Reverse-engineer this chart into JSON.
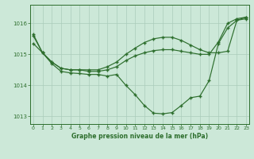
{
  "bg_color": "#cce8d8",
  "grid_color": "#aaccbb",
  "line_color": "#2d6e2d",
  "title": "Graphe pression niveau de la mer (hPa)",
  "ylim": [
    1012.75,
    1016.6
  ],
  "xlim": [
    -0.3,
    23.3
  ],
  "yticks": [
    1013,
    1014,
    1015,
    1016
  ],
  "xticks": [
    0,
    1,
    2,
    3,
    4,
    5,
    6,
    7,
    8,
    9,
    10,
    11,
    12,
    13,
    14,
    15,
    16,
    17,
    18,
    19,
    20,
    21,
    22,
    23
  ],
  "line1_x": [
    0,
    1,
    2,
    3,
    4,
    5,
    6,
    7,
    8,
    9,
    10,
    11,
    12,
    13,
    14,
    15,
    16,
    17,
    18,
    19,
    20,
    21,
    22,
    23
  ],
  "line1_y": [
    1015.65,
    1015.05,
    1014.7,
    1014.45,
    1014.4,
    1014.38,
    1014.35,
    1014.35,
    1014.3,
    1014.35,
    1014.0,
    1013.7,
    1013.35,
    1013.1,
    1013.08,
    1013.12,
    1013.35,
    1013.6,
    1013.65,
    1014.15,
    1015.35,
    1015.85,
    1016.1,
    1016.15
  ],
  "line2_x": [
    0,
    1,
    2,
    3,
    4,
    5,
    6,
    7,
    8,
    9,
    10,
    11,
    12,
    13,
    14,
    15,
    16,
    17,
    18,
    19,
    20,
    21,
    22,
    23
  ],
  "line2_y": [
    1015.35,
    1015.05,
    1014.75,
    1014.55,
    1014.5,
    1014.5,
    1014.5,
    1014.5,
    1014.6,
    1014.75,
    1015.0,
    1015.2,
    1015.38,
    1015.5,
    1015.55,
    1015.55,
    1015.45,
    1015.3,
    1015.15,
    1015.05,
    1015.05,
    1015.1,
    1016.1,
    1016.2
  ],
  "line3_x": [
    0,
    1,
    2,
    3,
    4,
    5,
    6,
    7,
    8,
    9,
    10,
    11,
    12,
    13,
    14,
    15,
    16,
    17,
    18,
    19,
    20,
    21,
    22,
    23
  ],
  "line3_y": [
    1015.6,
    1015.05,
    1014.75,
    1014.55,
    1014.5,
    1014.5,
    1014.45,
    1014.45,
    1014.5,
    1014.6,
    1014.8,
    1014.95,
    1015.05,
    1015.12,
    1015.15,
    1015.15,
    1015.1,
    1015.05,
    1015.0,
    1015.0,
    1015.4,
    1016.0,
    1016.15,
    1016.2
  ]
}
